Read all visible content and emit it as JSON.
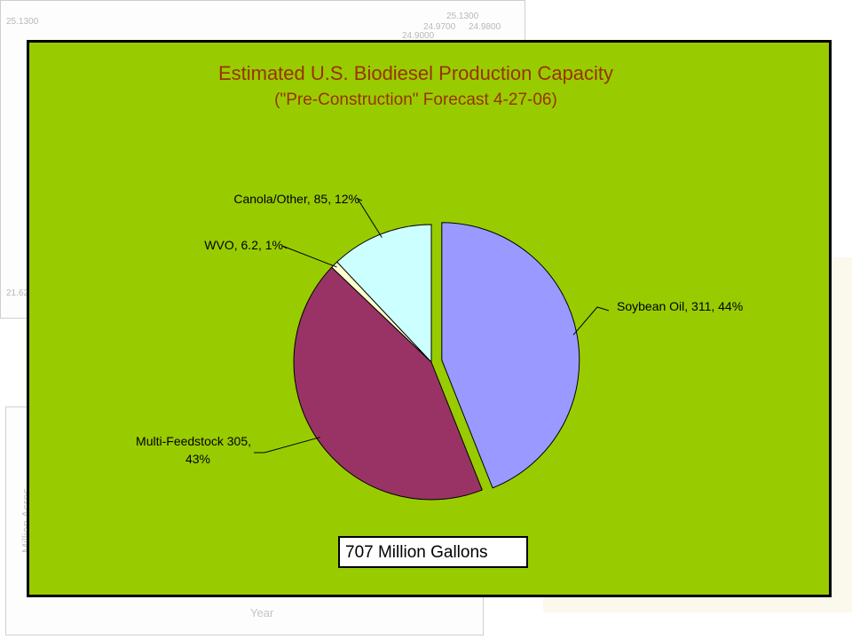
{
  "chart_data": {
    "type": "pie",
    "title": "Estimated U.S. Biodiesel Production Capacity",
    "subtitle": "(\"Pre-Construction\" Forecast 4-27-06)",
    "slices": [
      {
        "name": "Soybean Oil",
        "value": 311,
        "pct": 44,
        "label": "Soybean Oil, 311, 44%",
        "color": "#9999ff",
        "exploded": true
      },
      {
        "name": "Multi-Feedstock",
        "value": 305,
        "pct": 43,
        "label_line1": "Multi-Feedstock 305,",
        "label_line2": "43%",
        "color": "#993366",
        "exploded": false
      },
      {
        "name": "WVO",
        "value": 6.2,
        "pct": 1,
        "label": "WVO, 6.2, 1%",
        "color": "#ffffcc",
        "exploded": false
      },
      {
        "name": "Canola/Other",
        "value": 85,
        "pct": 12,
        "label": "Canola/Other, 85, 12%",
        "color": "#ccffff",
        "exploded": false
      }
    ],
    "total_label": "707 Million Gallons",
    "background": "#99cc00",
    "title_color": "#993300"
  },
  "background_charts": {
    "top_values": [
      "25.1300",
      "24.9700",
      "24.9800",
      "24.9000",
      "25.1300",
      "21.62"
    ],
    "bottom_axis_y": "Million Acres",
    "bottom_axis_x": "Year"
  }
}
